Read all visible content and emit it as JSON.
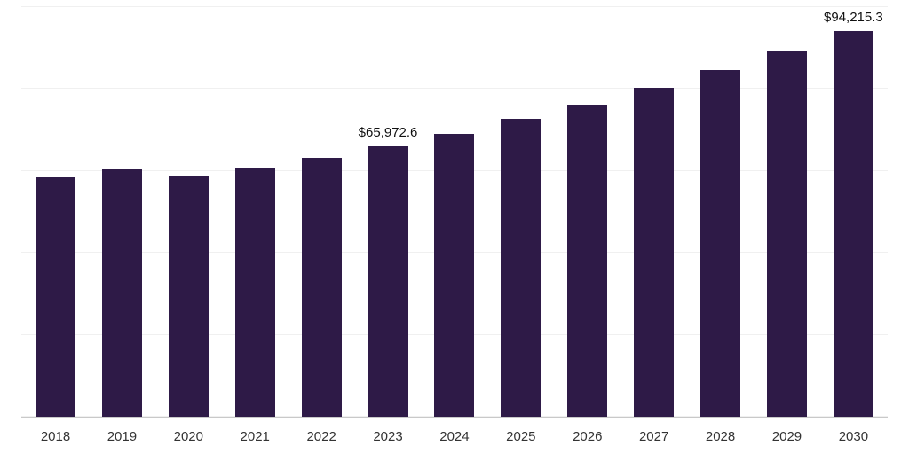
{
  "chart_data": {
    "type": "bar",
    "title": "",
    "xlabel": "",
    "ylabel": "",
    "categories": [
      "2018",
      "2019",
      "2020",
      "2021",
      "2022",
      "2023",
      "2024",
      "2025",
      "2026",
      "2027",
      "2028",
      "2029",
      "2030"
    ],
    "values": [
      58500,
      60400,
      58900,
      60900,
      63200,
      65972.6,
      69000,
      72800,
      76200,
      80200,
      84700,
      89400,
      94215.3
    ],
    "value_labels": {
      "2023": "$65,972.6",
      "2030": "$94,215.3"
    },
    "ylim": [
      0,
      100000
    ],
    "grid": true,
    "gridline_step": 20000,
    "legend_position": "none",
    "bar_color": "#2e1a47",
    "gridline_color": "#f0f0f0",
    "baseline_color": "#c9c9c9",
    "tick_label_color": "#333333",
    "value_label_color": "#111111"
  }
}
